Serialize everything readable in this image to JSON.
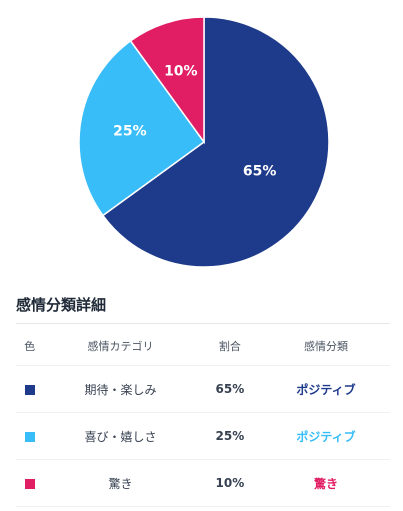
{
  "chart_data": {
    "type": "pie",
    "slices": [
      {
        "label": "期待・楽しみ",
        "value": 65,
        "display": "65%",
        "color": "#1e3a8a"
      },
      {
        "label": "喜び・嬉しさ",
        "value": 25,
        "display": "25%",
        "color": "#38bdf8"
      },
      {
        "label": "驚き",
        "value": 10,
        "display": "10%",
        "color": "#e11d63"
      }
    ]
  },
  "table": {
    "title": "感情分類詳細",
    "headers": [
      "色",
      "感情カテゴリ",
      "割合",
      "感情分類"
    ],
    "rows": [
      {
        "color": "#1e3a8a",
        "category": "期待・楽しみ",
        "share": "65%",
        "classification": "ポジティブ",
        "class_color": "#1e3a8a"
      },
      {
        "color": "#38bdf8",
        "category": "喜び・嬉しさ",
        "share": "25%",
        "classification": "ポジティブ",
        "class_color": "#38bdf8"
      },
      {
        "color": "#e11d63",
        "category": "驚き",
        "share": "10%",
        "classification": "驚き",
        "class_color": "#e11d63"
      }
    ]
  }
}
